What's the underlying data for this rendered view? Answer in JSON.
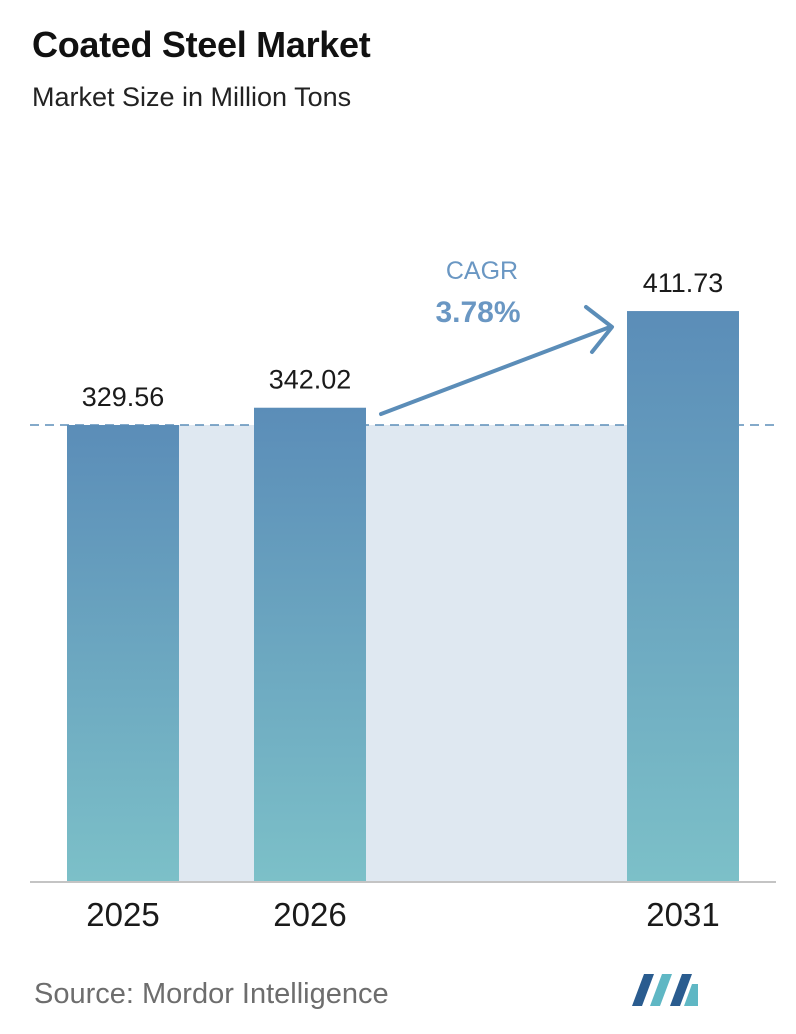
{
  "header": {
    "title": "Coated Steel Market",
    "subtitle": "Market Size in Million Tons"
  },
  "footer": {
    "source": "Source:  Mordor Intelligence",
    "logo_icon": "mordor-intelligence-logo-icon"
  },
  "colors": {
    "bar_top": "#5b8db8",
    "bar_bottom": "#7cc0c8",
    "band": "#dfe8f1",
    "dashed_line": "#5b8db8",
    "arrow": "#5b8db8",
    "cagr_text": "#6a97c3",
    "logo_dark": "#2a5c8f",
    "logo_light": "#5fb7c4"
  },
  "chart_data": {
    "type": "bar",
    "categories": [
      "2025",
      "2026",
      "2031"
    ],
    "values": [
      329.56,
      342.02,
      411.73
    ],
    "value_labels": [
      "329.56",
      "342.02",
      "411.73"
    ],
    "annotation": {
      "label": "CAGR",
      "value": "3.78%"
    },
    "ylim": [
      0,
      420
    ],
    "grid": false,
    "legend": "none"
  }
}
